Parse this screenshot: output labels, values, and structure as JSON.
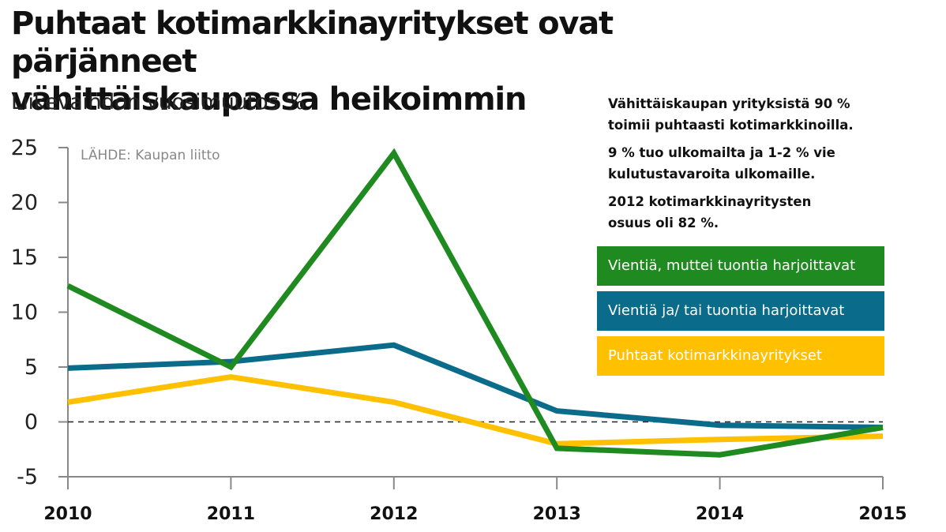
{
  "chart_data": {
    "type": "line",
    "title": "Puhtaat kotimarkkinayritykset ovat pärjänneet vähittäiskaupassa heikoimmin",
    "title_lines": [
      "Puhtaat kotimarkkinayritykset ovat pärjänneet",
      "vähittäiskaupassa heikoimmin"
    ],
    "subtitle": "Liikevaihdon vuosimuutos %",
    "source": "LÄHDE: Kaupan liitto",
    "x": [
      "2010",
      "2011",
      "2012",
      "2013",
      "2014",
      "2015"
    ],
    "ylim": [
      -5,
      25
    ],
    "y_ticks": [
      25,
      20,
      15,
      10,
      5,
      0,
      -5
    ],
    "zero_line": "dashed",
    "series": [
      {
        "name": "Vientiä, muttei tuontia harjoittavat",
        "color": "#1f8a1f",
        "values": [
          12.4,
          5.0,
          24.5,
          -2.4,
          -3.0,
          -0.5
        ]
      },
      {
        "name": "Vientiä ja/ tai tuontia harjoittavat",
        "color": "#0b6b8a",
        "values": [
          4.9,
          5.5,
          7.0,
          1.0,
          -0.3,
          -0.5
        ]
      },
      {
        "name": "Puhtaat kotimarkkinayritykset",
        "color": "#ffc000",
        "values": [
          1.8,
          4.1,
          1.8,
          -2.0,
          -1.6,
          -1.3
        ]
      }
    ],
    "notes": [
      [
        "Vähittäiskaupan yrityksistä 90 %",
        "toimii puhtaasti kotimarkkinoilla."
      ],
      [
        "9 % tuo ulkomailta ja 1-2 % vie",
        "kulutustavaroita ulkomaille."
      ],
      [
        "2012 kotimarkkinayritysten",
        "osuus oli 82 %."
      ]
    ]
  }
}
